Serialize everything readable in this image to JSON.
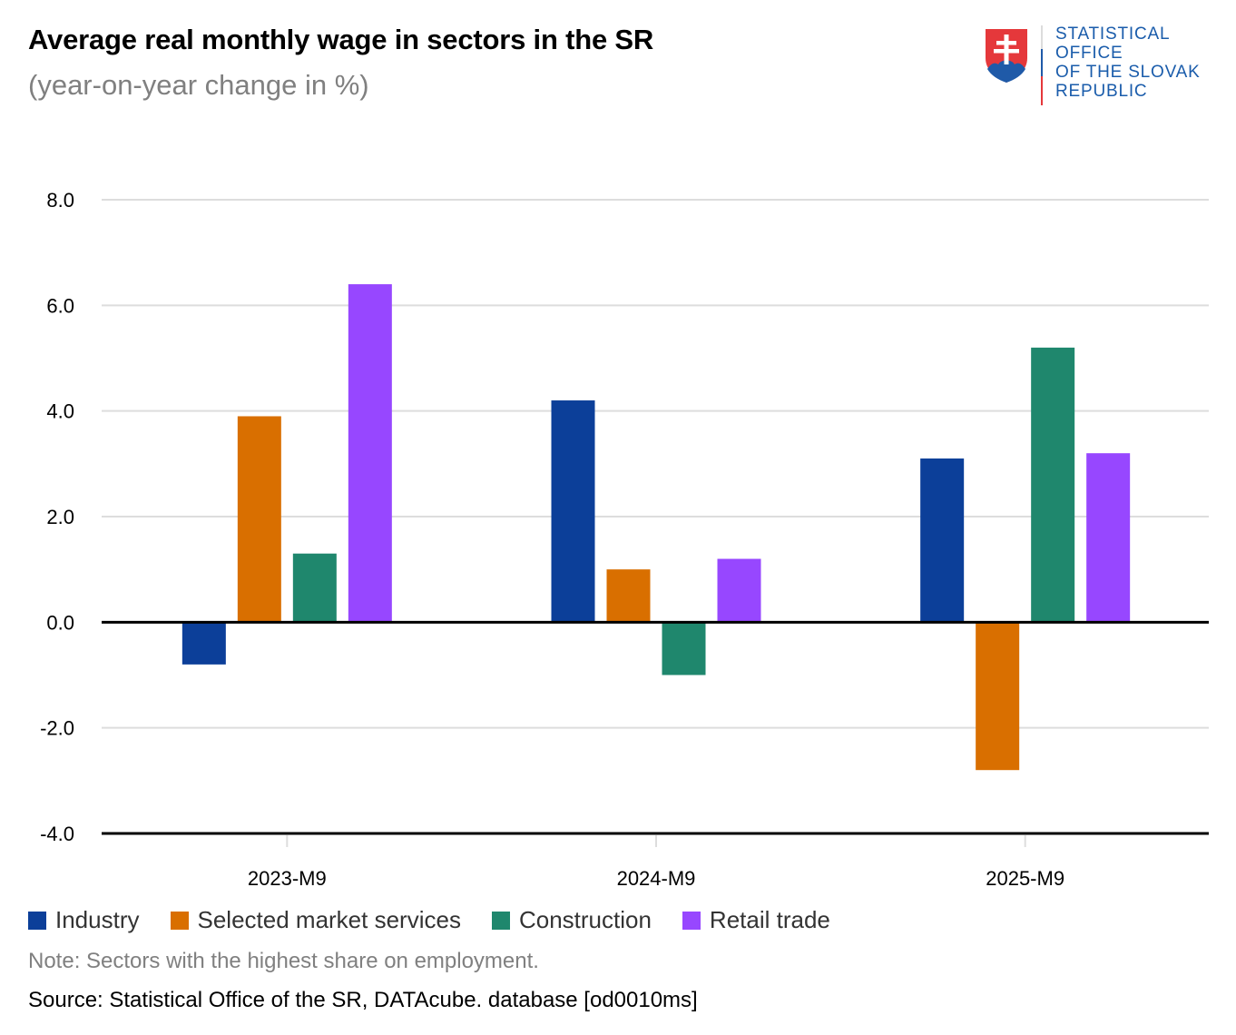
{
  "header": {
    "title": "Average real monthly wage in sectors in the SR",
    "subtitle": "(year-on-year change in %)"
  },
  "logo": {
    "lines": [
      "STATISTICAL",
      "OFFICE",
      "OF THE SLOVAK",
      "REPUBLIC"
    ],
    "icon": "slovak-coat-of-arms-icon"
  },
  "chart_data": {
    "type": "bar",
    "title": "Average real monthly wage in sectors in the SR",
    "subtitle": "(year-on-year change in %)",
    "xlabel": "",
    "ylabel": "",
    "categories": [
      "2023-M9",
      "2024-M9",
      "2025-M9"
    ],
    "ylim": [
      -4.0,
      8.0
    ],
    "yticks": [
      "8.0",
      "6.0",
      "4.0",
      "2.0",
      "0.0",
      "-2.0",
      "-4.0"
    ],
    "ytick_values": [
      8,
      6,
      4,
      2,
      0,
      -2,
      -4
    ],
    "grid": true,
    "legend_position": "bottom-left",
    "series": [
      {
        "name": "Industry",
        "color": "#0c3f99",
        "values": [
          -0.8,
          4.2,
          3.1
        ]
      },
      {
        "name": "Selected market services",
        "color": "#d96f00",
        "values": [
          3.9,
          1.0,
          -2.8
        ]
      },
      {
        "name": "Construction",
        "color": "#1f876d",
        "values": [
          1.3,
          -1.0,
          5.2
        ]
      },
      {
        "name": "Retail trade",
        "color": "#9747ff",
        "values": [
          6.4,
          1.2,
          3.2
        ]
      }
    ]
  },
  "footer": {
    "note": "Note: Sectors with the highest share on employment.",
    "source": "Source: Statistical Office of the SR, DATAcube. database [od0010ms]"
  }
}
